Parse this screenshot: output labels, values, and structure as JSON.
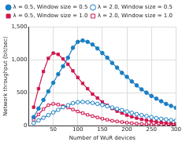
{
  "chart_data": {
    "type": "line",
    "x_label": "Number of WuR devices",
    "y_label": "Network throughput (bit/sec)",
    "x": [
      10,
      20,
      30,
      40,
      50,
      60,
      70,
      80,
      90,
      100,
      110,
      120,
      130,
      140,
      150,
      160,
      170,
      180,
      190,
      200,
      210,
      220,
      230,
      240,
      250,
      260,
      270,
      280,
      290,
      300
    ],
    "series": [
      {
        "name": "λ = 0.5, Window size = 0.5",
        "color": "#1a7fc4",
        "marker": "circle",
        "values": [
          130,
          260,
          390,
          520,
          650,
          780,
          900,
          1030,
          1180,
          1270,
          1290,
          1270,
          1230,
          1170,
          1100,
          1030,
          950,
          880,
          800,
          740,
          670,
          610,
          550,
          500,
          450,
          410,
          370,
          330,
          300,
          270
        ]
      },
      {
        "name": "λ = 2.0, Window size = 0.5",
        "color": "#1a7fc4",
        "marker": "circle-open",
        "values": [
          40,
          80,
          120,
          160,
          200,
          240,
          280,
          310,
          340,
          355,
          360,
          355,
          345,
          330,
          315,
          295,
          275,
          255,
          235,
          215,
          195,
          175,
          160,
          145,
          130,
          115,
          105,
          95,
          85,
          75
        ]
      },
      {
        "name": "λ = 0.5, Window size = 1.0",
        "color": "#d0174e",
        "marker": "square",
        "values": [
          280,
          560,
          820,
          1020,
          1100,
          1080,
          1010,
          930,
          830,
          730,
          640,
          560,
          480,
          420,
          360,
          310,
          260,
          220,
          190,
          160,
          135,
          115,
          95,
          80,
          70,
          58,
          48,
          40,
          33,
          27
        ]
      },
      {
        "name": "λ = 2.0, Window size = 1.0",
        "color": "#d0174e",
        "marker": "square-open",
        "values": [
          90,
          170,
          250,
          310,
          330,
          320,
          300,
          275,
          245,
          215,
          190,
          165,
          145,
          125,
          105,
          90,
          75,
          65,
          55,
          45,
          38,
          32,
          26,
          22,
          18,
          15,
          12,
          10,
          8,
          7
        ]
      }
    ],
    "xlim": [
      0,
      300
    ],
    "xticks": [
      50,
      100,
      150,
      200,
      250,
      300
    ],
    "ylim": [
      0,
      1500
    ],
    "yticks": [
      0,
      500,
      1000,
      1500
    ],
    "grid": true,
    "legend": "top"
  }
}
